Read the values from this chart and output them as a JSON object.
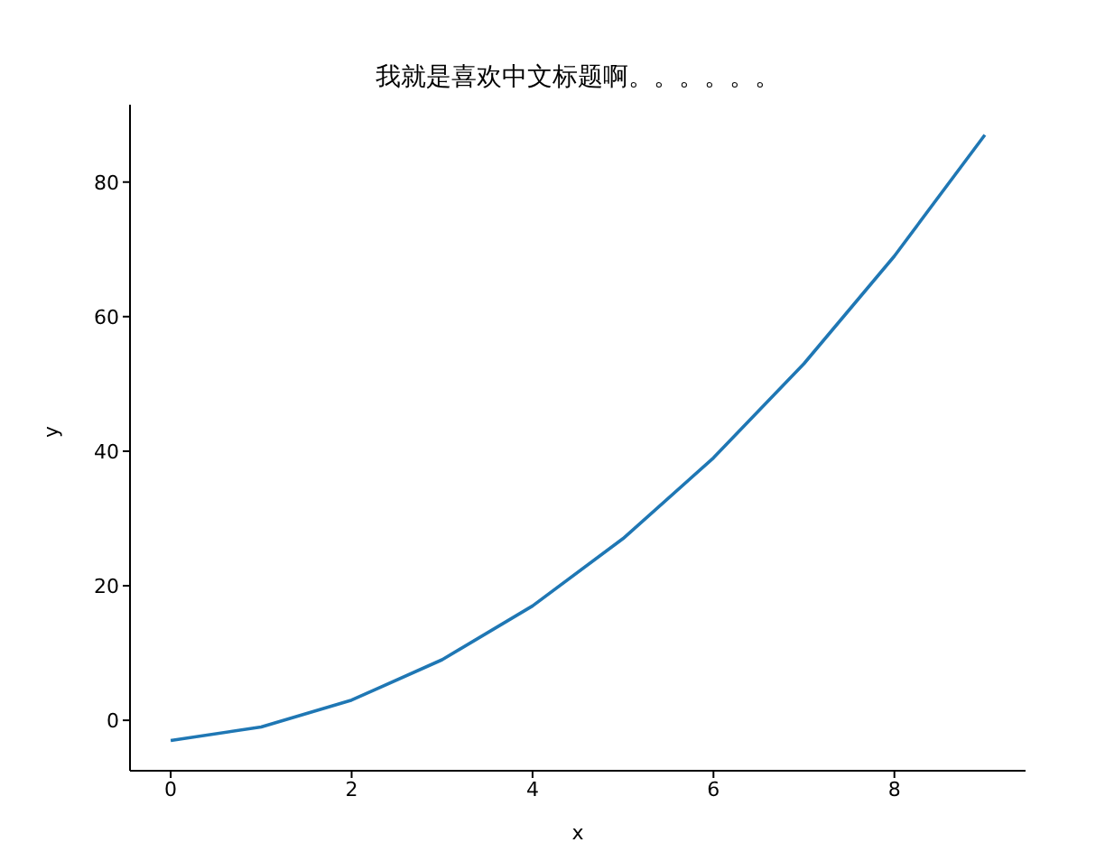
{
  "chart_data": {
    "type": "line",
    "title": "我就是喜欢中文标题啊。。。。。。",
    "xlabel": "x",
    "ylabel": "y",
    "x": [
      0,
      1,
      2,
      3,
      4,
      5,
      6,
      7,
      8,
      9
    ],
    "series": [
      {
        "color": "#1f77b4",
        "values": [
          -3,
          -1,
          3,
          9,
          17,
          27,
          39,
          53,
          69,
          87
        ]
      }
    ],
    "xlim": [
      -0.45,
      9.45
    ],
    "xticks": [
      0,
      2,
      4,
      6,
      8
    ],
    "ylim": [
      -7.5,
      91.5
    ],
    "yticks": [
      0,
      20,
      40,
      60,
      80
    ],
    "grid": false,
    "legend": false,
    "marker": "none",
    "line_style": "solid"
  }
}
